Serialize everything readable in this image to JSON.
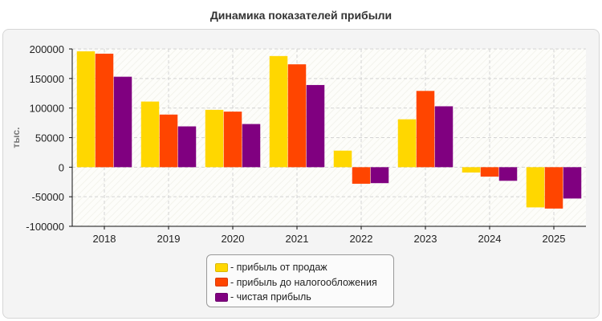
{
  "chart_data": {
    "type": "bar",
    "title": "Динамика показателей прибыли",
    "ylabel": "тыс.",
    "xlabel": "",
    "categories": [
      "2018",
      "2019",
      "2020",
      "2021",
      "2022",
      "2023",
      "2024",
      "2025"
    ],
    "series": [
      {
        "name": "- прибыль от продаж",
        "color": "#ffd700",
        "values": [
          196000,
          111000,
          97000,
          188000,
          28000,
          81000,
          -9000,
          -68000
        ]
      },
      {
        "name": "- прибыль до налогообложения",
        "color": "#ff4500",
        "values": [
          192000,
          89000,
          94000,
          174000,
          -28000,
          129000,
          -16000,
          -70000
        ]
      },
      {
        "name": "- чистая прибыль",
        "color": "#800080",
        "values": [
          153000,
          69000,
          73000,
          139000,
          -27000,
          103000,
          -23000,
          -53000
        ]
      }
    ],
    "ylim": [
      -100000,
      200000
    ],
    "yticks": [
      "200000",
      "150000",
      "100000",
      "50000",
      "0",
      "-50000",
      "-100000"
    ],
    "grid": true,
    "legend_position": "bottom"
  }
}
